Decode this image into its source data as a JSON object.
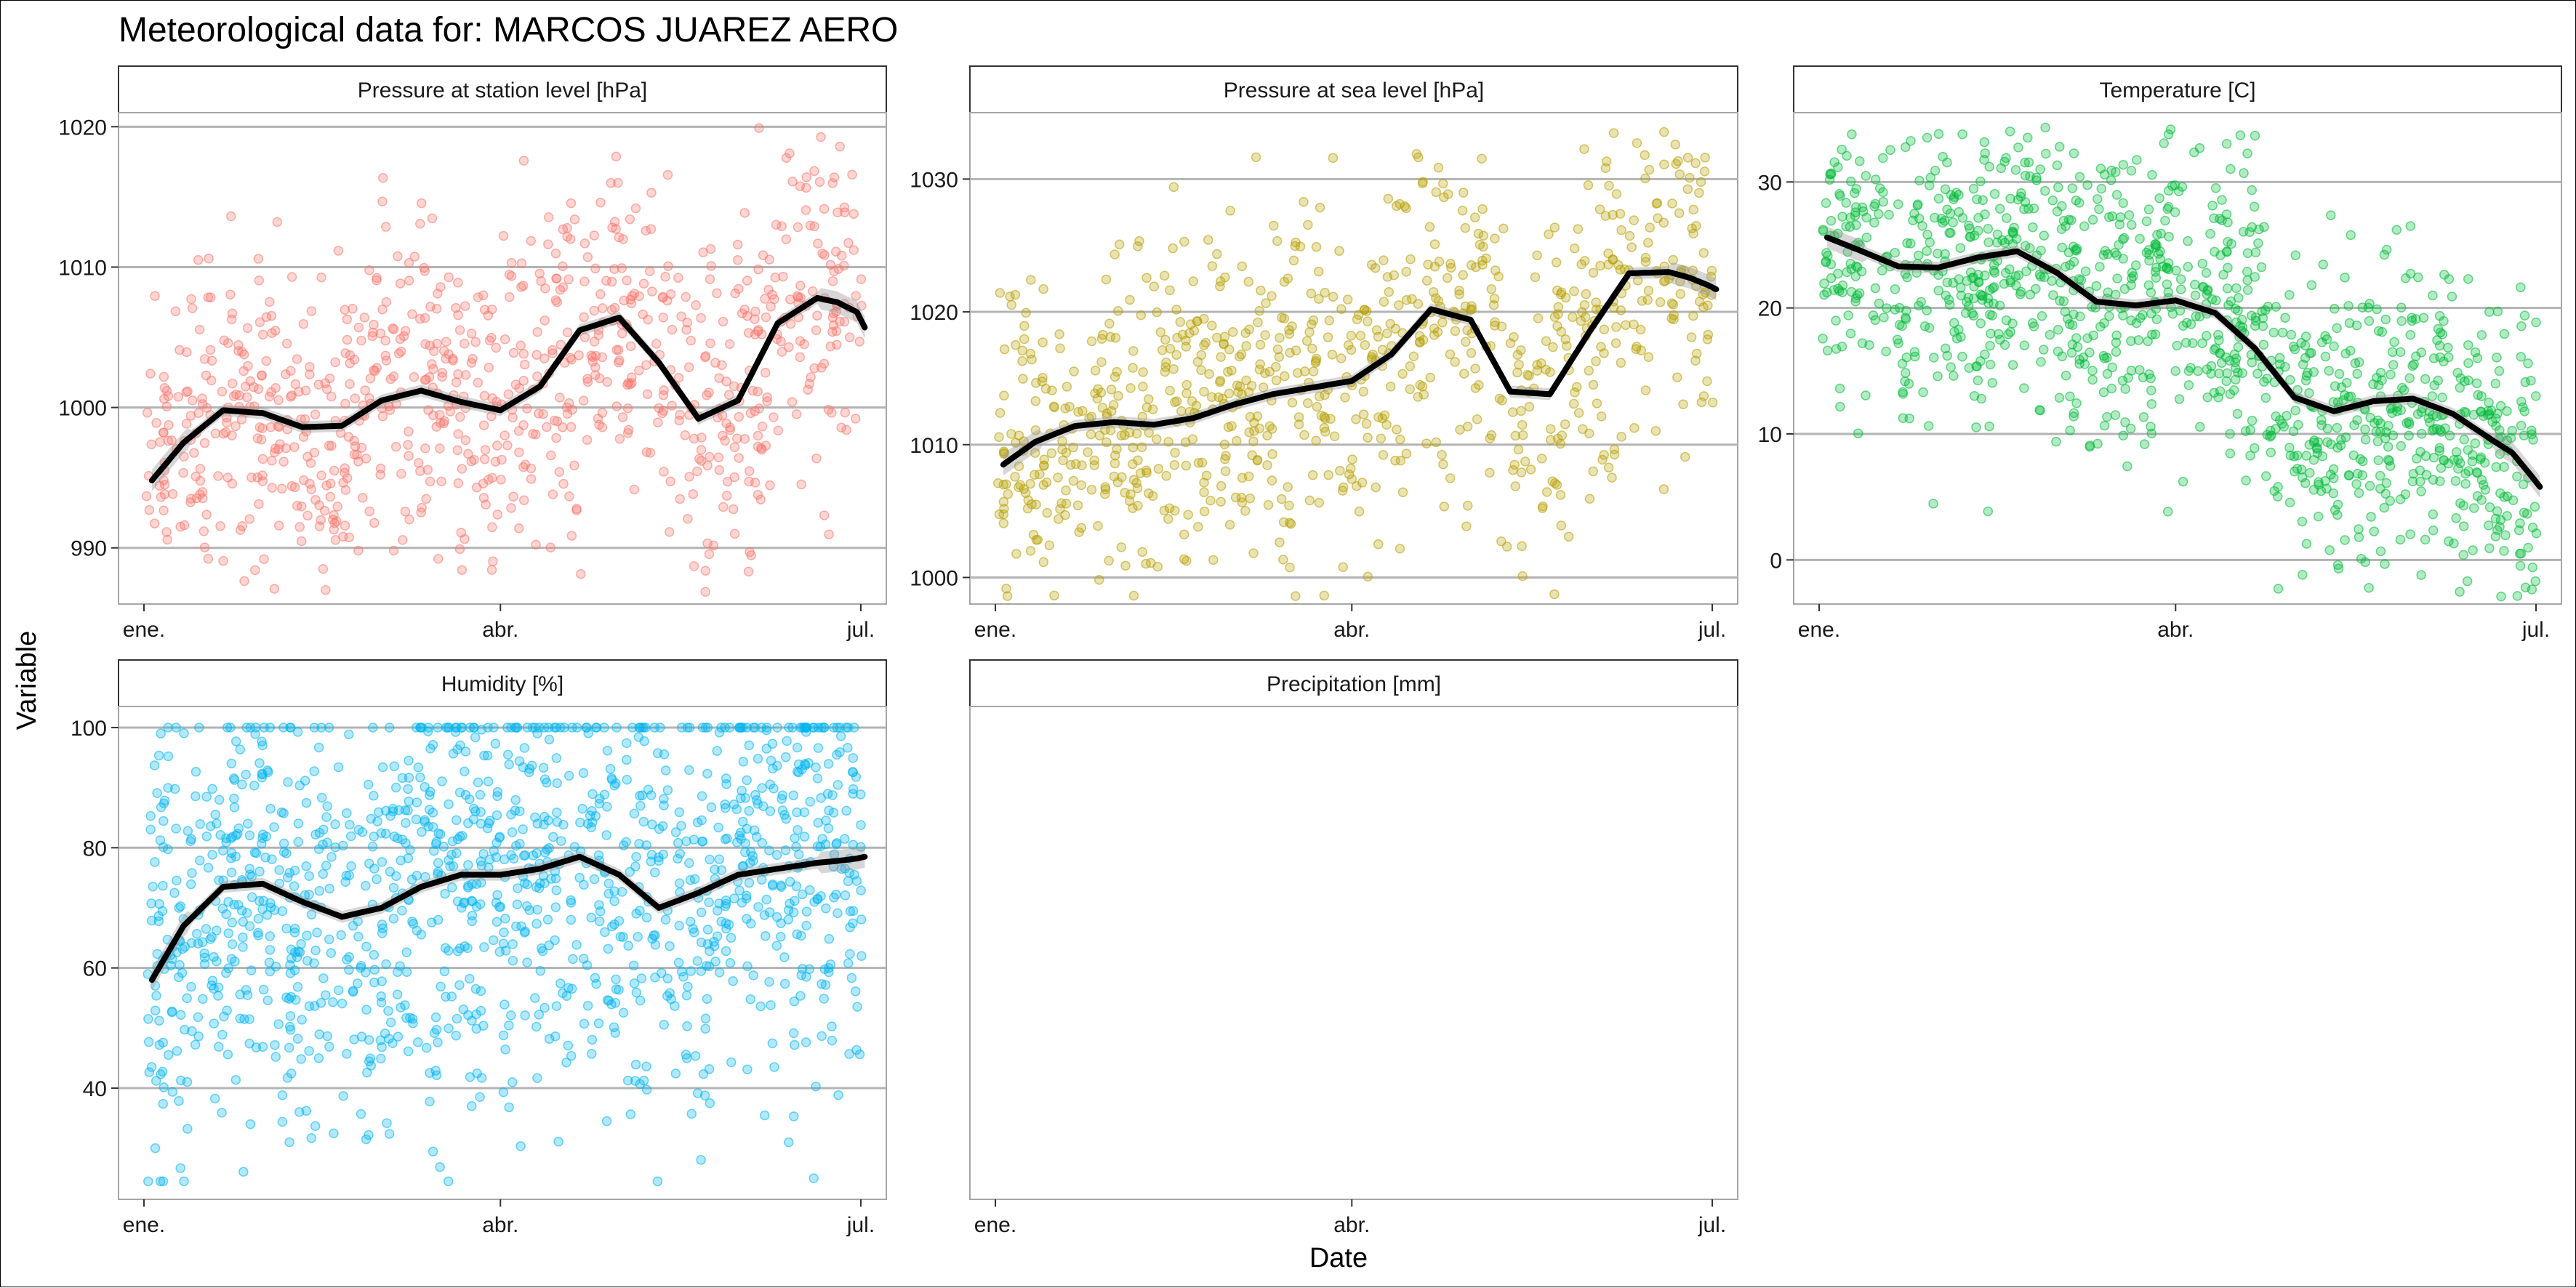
{
  "title": "Meteorological data for: MARCOS JUAREZ AERO",
  "xlabel": "Date",
  "ylabel": "Variable",
  "x_ticks": [
    "ene.",
    "abr.",
    "jul."
  ],
  "colors": {
    "pressure_station": "#F8766D",
    "pressure_sea": "#B79F00",
    "temperature": "#00BA38",
    "humidity": "#00B4F0",
    "smooth": "#000000",
    "band": "#999999"
  },
  "chart_data": [
    {
      "type": "scatter",
      "title": "Pressure at station level [hPa]",
      "color_key": "pressure_station",
      "x_range": [
        "2019-01-01",
        "2019-07-01"
      ],
      "ylim": [
        986,
        1021
      ],
      "y_ticks": [
        990,
        1000,
        1010,
        1020
      ],
      "smooth": {
        "x": [
          2,
          10,
          20,
          30,
          40,
          50,
          60,
          70,
          80,
          90,
          100,
          110,
          120,
          130,
          140,
          150,
          160,
          170,
          175,
          180,
          182
        ],
        "y": [
          994.8,
          997.5,
          999.8,
          999.6,
          998.6,
          998.7,
          1000.5,
          1001.2,
          1000.4,
          999.8,
          1001.5,
          1005.5,
          1006.4,
          1003.2,
          999.2,
          1000.5,
          1006.0,
          1007.8,
          1007.5,
          1006.8,
          1005.7
        ]
      },
      "scatter_scale": 6.0,
      "scatter_pts": 900
    },
    {
      "type": "scatter",
      "title": "Pressure at sea level [hPa]",
      "color_key": "pressure_sea",
      "x_range": [
        "2019-01-01",
        "2019-07-01"
      ],
      "ylim": [
        998,
        1035
      ],
      "y_ticks": [
        1000,
        1010,
        1020,
        1030
      ],
      "smooth": {
        "x": [
          2,
          10,
          20,
          30,
          40,
          50,
          60,
          70,
          80,
          90,
          100,
          110,
          120,
          130,
          140,
          150,
          160,
          170,
          175,
          180,
          182
        ],
        "y": [
          1008.5,
          1010.2,
          1011.4,
          1011.7,
          1011.5,
          1012.0,
          1013.0,
          1013.8,
          1014.3,
          1014.8,
          1016.8,
          1020.2,
          1019.4,
          1014.0,
          1013.8,
          1018.5,
          1022.9,
          1023.0,
          1022.6,
          1022.0,
          1021.7
        ]
      },
      "scatter_scale": 6.5,
      "scatter_pts": 900
    },
    {
      "type": "scatter",
      "title": "Temperature [C]",
      "color_key": "temperature",
      "x_range": [
        "2019-01-01",
        "2019-07-01"
      ],
      "ylim": [
        -3.5,
        35.5
      ],
      "y_ticks": [
        0,
        10,
        20,
        30
      ],
      "smooth": {
        "x": [
          2,
          10,
          20,
          30,
          40,
          50,
          60,
          70,
          80,
          90,
          100,
          110,
          120,
          130,
          140,
          150,
          160,
          170,
          175,
          180,
          182
        ],
        "y": [
          25.6,
          24.6,
          23.3,
          23.2,
          24.0,
          24.5,
          22.8,
          20.5,
          20.2,
          20.6,
          19.6,
          16.8,
          12.9,
          11.8,
          12.6,
          12.8,
          11.6,
          9.5,
          8.5,
          6.6,
          5.8
        ]
      },
      "scatter_scale": 6.0,
      "scatter_pts": 1200
    },
    {
      "type": "scatter",
      "title": "Humidity [%]",
      "color_key": "humidity",
      "x_range": [
        "2019-01-01",
        "2019-07-01"
      ],
      "ylim": [
        21.5,
        103.5
      ],
      "y_ticks": [
        40,
        60,
        80,
        100
      ],
      "smooth": {
        "x": [
          2,
          10,
          20,
          30,
          40,
          50,
          60,
          70,
          80,
          90,
          100,
          110,
          120,
          130,
          140,
          150,
          160,
          170,
          175,
          180,
          182
        ],
        "y": [
          58.0,
          67.0,
          73.5,
          74.0,
          71.0,
          68.5,
          70.0,
          73.5,
          75.5,
          75.5,
          76.5,
          78.5,
          75.5,
          70.0,
          72.5,
          75.5,
          76.5,
          77.5,
          77.8,
          78.2,
          78.5
        ]
      },
      "scatter_scale": 18,
      "scatter_pts": 1300
    },
    {
      "type": "scatter",
      "title": "Precipitation [mm]",
      "color_key": "humidity",
      "x_range": [
        "2019-01-01",
        "2019-07-01"
      ],
      "ylim": [
        0,
        1
      ],
      "y_ticks": [],
      "smooth": null,
      "scatter_scale": 0,
      "scatter_pts": 0
    }
  ]
}
